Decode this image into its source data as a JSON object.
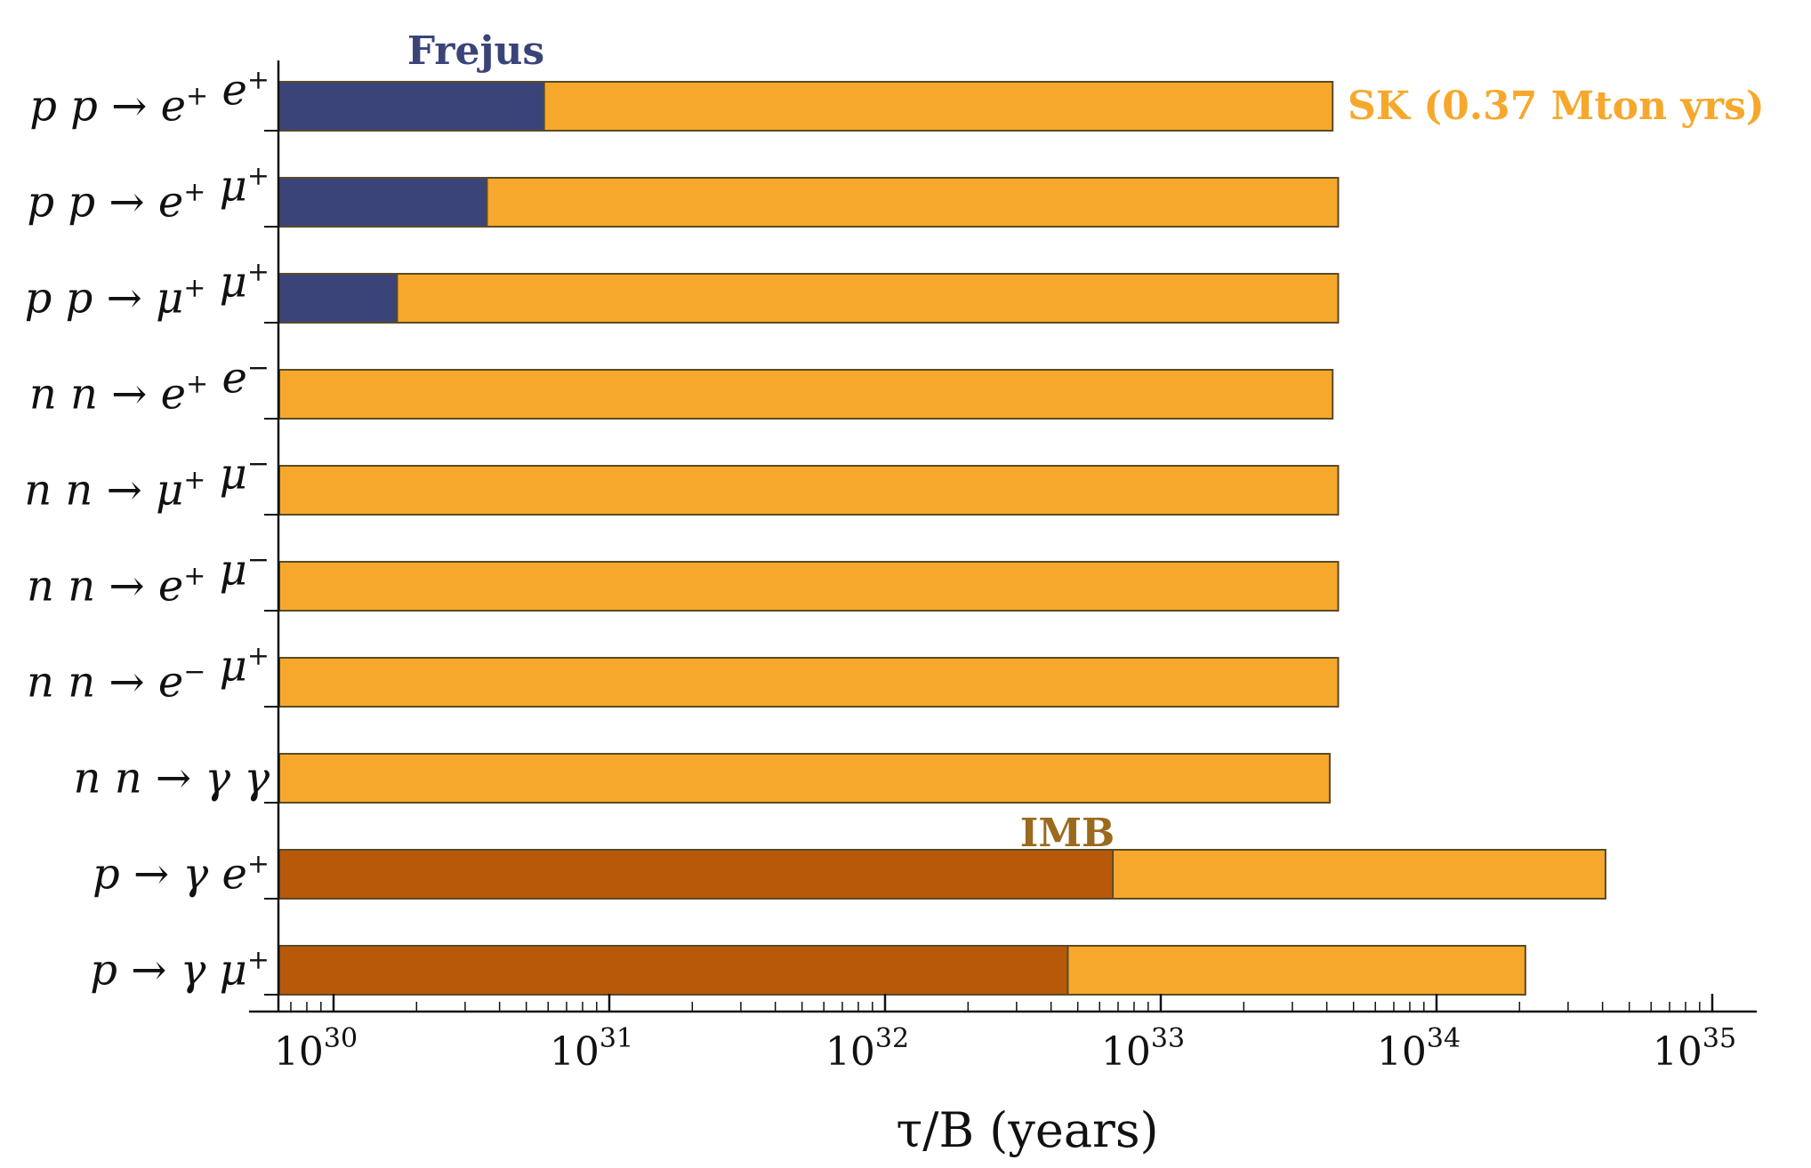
{
  "chart_data": {
    "type": "bar",
    "orientation": "horizontal",
    "x_scale": "log",
    "xlim": [
      6.3e+29,
      1.3e+35
    ],
    "xlabel": "τ/B (years)",
    "x_ticks": [
      {
        "base": "10",
        "exp": "30"
      },
      {
        "base": "10",
        "exp": "31"
      },
      {
        "base": "10",
        "exp": "32"
      },
      {
        "base": "10",
        "exp": "33"
      },
      {
        "base": "10",
        "exp": "34"
      },
      {
        "base": "10",
        "exp": "35"
      }
    ],
    "categories": [
      {
        "parts": [
          [
            "p p → e",
            "+"
          ],
          [
            " e",
            "+"
          ]
        ]
      },
      {
        "parts": [
          [
            "p p → e",
            "+"
          ],
          [
            " μ",
            "+"
          ]
        ]
      },
      {
        "parts": [
          [
            "p p → μ",
            "+"
          ],
          [
            " μ",
            "+"
          ]
        ]
      },
      {
        "parts": [
          [
            "n n → e",
            "+"
          ],
          [
            " e",
            "−"
          ]
        ]
      },
      {
        "parts": [
          [
            "n n → μ",
            "+"
          ],
          [
            " μ",
            "−"
          ]
        ]
      },
      {
        "parts": [
          [
            "n n → e",
            "+"
          ],
          [
            " μ",
            "−"
          ]
        ]
      },
      {
        "parts": [
          [
            "n n → e",
            "−"
          ],
          [
            " μ",
            "+"
          ]
        ]
      },
      {
        "parts": [
          [
            "n n → γ γ",
            ""
          ]
        ]
      },
      {
        "parts": [
          [
            "p → γ e",
            "+"
          ]
        ]
      },
      {
        "parts": [
          [
            "p → γ μ",
            "+"
          ]
        ]
      }
    ],
    "series": [
      {
        "name": "SK (0.37 Mton yrs)",
        "color": "#F6A82D",
        "values": [
          4.2e+33,
          4.4e+33,
          4.4e+33,
          4.2e+33,
          4.4e+33,
          4.4e+33,
          4.4e+33,
          4.1e+33,
          4.1e+34,
          2.1e+34
        ]
      },
      {
        "name": "Frejus",
        "color": "#3B4479",
        "values": [
          5.8e+30,
          3.6e+30,
          1.7e+30,
          null,
          null,
          null,
          null,
          null,
          null,
          null
        ]
      },
      {
        "name": "IMB",
        "color": "#B8590A",
        "values": [
          null,
          null,
          null,
          null,
          null,
          null,
          null,
          null,
          6.7e+32,
          4.6e+32
        ]
      }
    ],
    "annotations": [
      {
        "text": "Frejus",
        "color": "#3B4479",
        "anchor_row": 0
      },
      {
        "text": "SK (0.37 Mton yrs)",
        "color": "#F6A82D",
        "anchor_row": 0
      },
      {
        "text": "IMB",
        "color": "#9A6A1E",
        "anchor_row": 8
      }
    ]
  }
}
